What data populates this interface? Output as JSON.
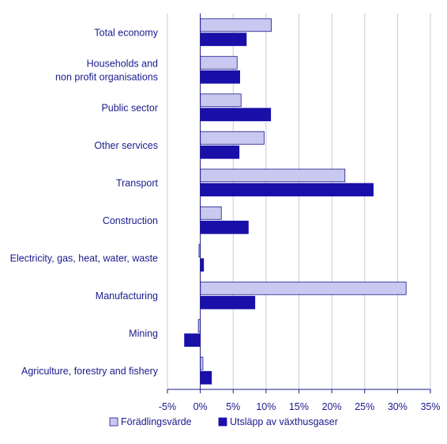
{
  "chart_data": {
    "type": "bar",
    "orientation": "horizontal",
    "categories": [
      "Total economy",
      "Households and\nnon profit organisations",
      "Public sector",
      "Other services",
      "Transport",
      "Construction",
      "Electricity, gas, heat, water, waste",
      "Manufacturing",
      "Mining",
      "Agriculture, forestry and fishery"
    ],
    "series": [
      {
        "name": "Förädlingsvärde",
        "color": "#c9c8f0",
        "stroke": "#1a1a8c",
        "values": [
          10.8,
          5.6,
          6.2,
          9.7,
          22.0,
          3.2,
          -0.2,
          31.3,
          -0.3,
          0.4
        ]
      },
      {
        "name": "Utsläpp av växthusgaser",
        "color": "#1a0fa8",
        "stroke": "#1a0fa8",
        "values": [
          7.0,
          6.0,
          10.7,
          5.9,
          26.3,
          7.3,
          0.5,
          8.3,
          -2.4,
          1.7
        ]
      }
    ],
    "xlim": [
      -5,
      35
    ],
    "xticks": [
      -5,
      0,
      5,
      10,
      15,
      20,
      25,
      30,
      35
    ],
    "xtick_suffix": "%",
    "grid": "vertical",
    "legend_position": "bottom"
  }
}
